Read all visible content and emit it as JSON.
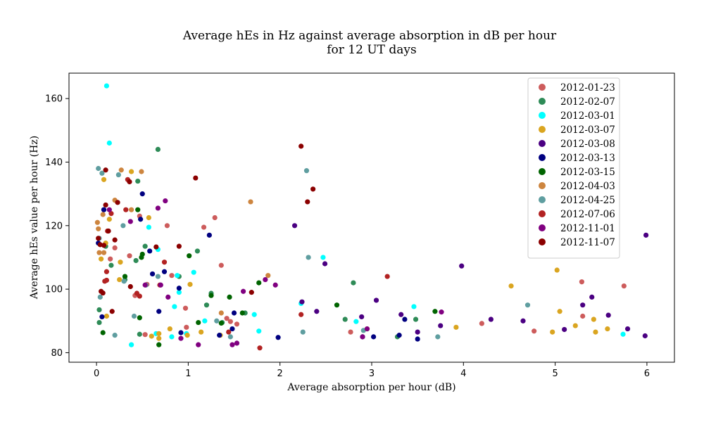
{
  "chart_data": {
    "type": "scatter",
    "title": [
      "Average hEs in Hz against average absorption in dB per hour",
      "for 12 UT days"
    ],
    "xlabel": "Average absorption per hour (dB)",
    "ylabel": "Average hEs value per hour (Hz)",
    "xlim": [
      -0.3,
      6.3
    ],
    "ylim": [
      77,
      168
    ],
    "xticks": [
      0,
      1,
      2,
      3,
      4,
      5,
      6
    ],
    "yticks": [
      80,
      100,
      120,
      140,
      160
    ],
    "grid": false,
    "legend_position": "top-right",
    "series": [
      {
        "name": "2012-01-23",
        "color": "#cd5c5c",
        "points": [
          [
            0.15,
            109.5
          ],
          [
            0.2,
            113
          ],
          [
            0.36,
            110.5
          ],
          [
            0.42,
            98
          ],
          [
            0.47,
            123
          ],
          [
            0.53,
            85.7
          ],
          [
            0.55,
            101.5
          ],
          [
            0.77,
            120
          ],
          [
            0.82,
            104.3
          ],
          [
            0.97,
            94
          ],
          [
            0.98,
            88
          ],
          [
            1.17,
            119.5
          ],
          [
            1.29,
            122.5
          ],
          [
            1.36,
            107.5
          ],
          [
            1.42,
            90.8
          ],
          [
            1.46,
            89.8
          ],
          [
            1.53,
            89
          ],
          [
            2.77,
            86.5
          ],
          [
            4.2,
            89.2
          ],
          [
            4.77,
            86.8
          ],
          [
            5.29,
            102.3
          ],
          [
            5.3,
            91.5
          ],
          [
            5.75,
            101
          ]
        ]
      },
      {
        "name": "2012-02-07",
        "color": "#2e8b57",
        "points": [
          [
            0.03,
            93.5
          ],
          [
            0.03,
            89.5
          ],
          [
            0.1,
            113.5
          ],
          [
            0.16,
            107.5
          ],
          [
            0.31,
            103
          ],
          [
            0.43,
            109
          ],
          [
            0.45,
            134
          ],
          [
            0.47,
            85.8
          ],
          [
            0.53,
            113.5
          ],
          [
            0.67,
            144
          ],
          [
            0.9,
            104
          ],
          [
            1.1,
            112
          ],
          [
            1.2,
            95
          ],
          [
            1.25,
            98.7
          ],
          [
            1.37,
            89.5
          ],
          [
            1.62,
            92.5
          ],
          [
            2.71,
            90.5
          ],
          [
            2.8,
            102
          ],
          [
            3.28,
            85
          ],
          [
            3.48,
            90.5
          ]
        ]
      },
      {
        "name": "2012-03-01",
        "color": "#00ffff",
        "points": [
          [
            0.11,
            164
          ],
          [
            0.14,
            146
          ],
          [
            0.38,
            82.5
          ],
          [
            0.57,
            119.5
          ],
          [
            0.65,
            86
          ],
          [
            0.67,
            112.5
          ],
          [
            0.82,
            85
          ],
          [
            0.85,
            94.5
          ],
          [
            0.88,
            104.3
          ],
          [
            0.9,
            99
          ],
          [
            0.98,
            86
          ],
          [
            1.06,
            105.3
          ],
          [
            1.18,
            90
          ],
          [
            1.72,
            92
          ],
          [
            1.77,
            86.8
          ],
          [
            2.23,
            95.5
          ],
          [
            2.47,
            110
          ],
          [
            2.83,
            89.8
          ],
          [
            3.46,
            94.5
          ],
          [
            5.74,
            85.8
          ]
        ]
      },
      {
        "name": "2012-03-07",
        "color": "#daa520",
        "points": [
          [
            0.05,
            109.5
          ],
          [
            0.08,
            134.5
          ],
          [
            0.1,
            114.5
          ],
          [
            0.11,
            91.5
          ],
          [
            0.14,
            122
          ],
          [
            0.25,
            103
          ],
          [
            0.26,
            108.5
          ],
          [
            0.38,
            137
          ],
          [
            0.57,
            122.5
          ],
          [
            0.6,
            85.2
          ],
          [
            0.68,
            84.5
          ],
          [
            0.68,
            86
          ],
          [
            0.8,
            87.5
          ],
          [
            0.99,
            85.5
          ],
          [
            1.02,
            101.5
          ],
          [
            1.14,
            86.5
          ],
          [
            1.35,
            85.5
          ],
          [
            2.95,
            87.5
          ],
          [
            3.92,
            88
          ],
          [
            4.52,
            101
          ],
          [
            4.97,
            86.5
          ],
          [
            5.02,
            106
          ],
          [
            5.05,
            93
          ],
          [
            5.22,
            88.5
          ],
          [
            5.42,
            90.5
          ],
          [
            5.44,
            86.5
          ],
          [
            5.57,
            87.5
          ]
        ]
      },
      {
        "name": "2012-03-08",
        "color": "#4b0082",
        "points": [
          [
            2.16,
            120
          ],
          [
            2.24,
            96
          ],
          [
            2.4,
            93
          ],
          [
            2.49,
            108
          ],
          [
            2.89,
            91.3
          ],
          [
            3.05,
            96.5
          ],
          [
            3.32,
            92
          ],
          [
            3.5,
            86.5
          ],
          [
            3.75,
            88.5
          ],
          [
            3.98,
            107.3
          ],
          [
            4.3,
            90.5
          ],
          [
            4.65,
            90
          ],
          [
            5.1,
            87.3
          ],
          [
            5.3,
            95
          ],
          [
            5.4,
            97.5
          ],
          [
            5.58,
            91.8
          ],
          [
            5.79,
            87.5
          ],
          [
            5.98,
            85.3
          ],
          [
            5.99,
            117
          ]
        ]
      },
      {
        "name": "2012-03-13",
        "color": "#000080",
        "points": [
          [
            0.02,
            114.5
          ],
          [
            0.06,
            91.3
          ],
          [
            0.08,
            125
          ],
          [
            0.08,
            125
          ],
          [
            0.48,
            122
          ],
          [
            0.5,
            130
          ],
          [
            0.58,
            112
          ],
          [
            0.61,
            104.8
          ],
          [
            0.68,
            93
          ],
          [
            0.74,
            105.5
          ],
          [
            0.9,
            100.3
          ],
          [
            0.92,
            86.3
          ],
          [
            1.23,
            117
          ],
          [
            1.34,
            85.5
          ],
          [
            1.48,
            87.5
          ],
          [
            1.5,
            92.5
          ],
          [
            1.98,
            84.8
          ],
          [
            2.9,
            85
          ],
          [
            3.02,
            85
          ],
          [
            3.3,
            85.5
          ],
          [
            3.36,
            90.5
          ],
          [
            3.5,
            84.3
          ]
        ]
      },
      {
        "name": "2012-03-15",
        "color": "#006400",
        "points": [
          [
            0.07,
            86.3
          ],
          [
            0.31,
            104
          ],
          [
            0.45,
            125
          ],
          [
            0.47,
            91
          ],
          [
            0.49,
            110
          ],
          [
            0.5,
            111
          ],
          [
            0.68,
            82.5
          ],
          [
            1.01,
            110.5
          ],
          [
            1.11,
            89.5
          ],
          [
            1.25,
            98
          ],
          [
            1.36,
            89.3
          ],
          [
            1.45,
            97.5
          ],
          [
            1.59,
            92.5
          ],
          [
            1.77,
            102
          ],
          [
            2.62,
            95
          ],
          [
            3.69,
            93
          ]
        ]
      },
      {
        "name": "2012-04-03",
        "color": "#cd853f",
        "points": [
          [
            0.01,
            121
          ],
          [
            0.02,
            119
          ],
          [
            0.03,
            111.5
          ],
          [
            0.07,
            123.5
          ],
          [
            0.08,
            111.5
          ],
          [
            0.2,
            128
          ],
          [
            0.27,
            137.5
          ],
          [
            0.38,
            125
          ],
          [
            0.49,
            137
          ],
          [
            1.36,
            92.5
          ],
          [
            1.68,
            127.5
          ],
          [
            1.87,
            104.3
          ]
        ]
      },
      {
        "name": "2012-04-25",
        "color": "#5f9ea0",
        "points": [
          [
            0.02,
            138
          ],
          [
            0.03,
            116
          ],
          [
            0.04,
            97.5
          ],
          [
            0.06,
            136.5
          ],
          [
            0.2,
            85.5
          ],
          [
            0.24,
            136
          ],
          [
            0.29,
            120
          ],
          [
            0.3,
            102.5
          ],
          [
            0.41,
            91.5
          ],
          [
            0.54,
            101.3
          ],
          [
            0.67,
            104
          ],
          [
            1.31,
            90
          ],
          [
            1.46,
            85
          ],
          [
            2.25,
            86.5
          ],
          [
            2.29,
            137.3
          ],
          [
            2.31,
            110
          ],
          [
            2.91,
            87
          ],
          [
            3.72,
            85
          ],
          [
            4.7,
            95
          ]
        ]
      },
      {
        "name": "2012-07-06",
        "color": "#b22222",
        "points": [
          [
            0.09,
            102.5
          ],
          [
            0.11,
            102.8
          ],
          [
            0.11,
            105.5
          ],
          [
            0.12,
            118.3
          ],
          [
            0.16,
            123.8
          ],
          [
            0.32,
            125
          ],
          [
            0.34,
            134.5
          ],
          [
            0.44,
            98.7
          ],
          [
            0.47,
            97.8
          ],
          [
            0.69,
            101.3
          ],
          [
            0.74,
            108.5
          ],
          [
            1.44,
            86.5
          ],
          [
            1.78,
            81.5
          ],
          [
            2.23,
            92
          ],
          [
            3.17,
            104
          ]
        ]
      },
      {
        "name": "2012-11-01",
        "color": "#800080",
        "points": [
          [
            0.14,
            125
          ],
          [
            0.37,
            121.3
          ],
          [
            0.53,
            101.3
          ],
          [
            0.67,
            125.5
          ],
          [
            0.7,
            101.3
          ],
          [
            0.75,
            127.8
          ],
          [
            0.78,
            97.5
          ],
          [
            0.92,
            84.5
          ],
          [
            1.11,
            82.5
          ],
          [
            1.48,
            82.5
          ],
          [
            1.53,
            83
          ],
          [
            1.6,
            99.3
          ],
          [
            1.84,
            103
          ],
          [
            1.95,
            101.3
          ],
          [
            2.9,
            85
          ],
          [
            2.95,
            87.5
          ],
          [
            3.76,
            92.8
          ]
        ]
      },
      {
        "name": "2012-11-07",
        "color": "#8b0000",
        "points": [
          [
            0.02,
            116
          ],
          [
            0.04,
            114
          ],
          [
            0.05,
            99.3
          ],
          [
            0.07,
            98.8
          ],
          [
            0.08,
            113.8
          ],
          [
            0.1,
            137.5
          ],
          [
            0.1,
            126.5
          ],
          [
            0.13,
            118.3
          ],
          [
            0.17,
            93
          ],
          [
            0.2,
            115.5
          ],
          [
            0.23,
            127.3
          ],
          [
            0.37,
            100.8
          ],
          [
            0.36,
            133.8
          ],
          [
            0.65,
            113.3
          ],
          [
            0.9,
            113.5
          ],
          [
            1.08,
            135
          ],
          [
            1.69,
            99
          ],
          [
            2.23,
            145
          ],
          [
            2.3,
            127.5
          ],
          [
            2.36,
            131.5
          ]
        ]
      }
    ]
  }
}
